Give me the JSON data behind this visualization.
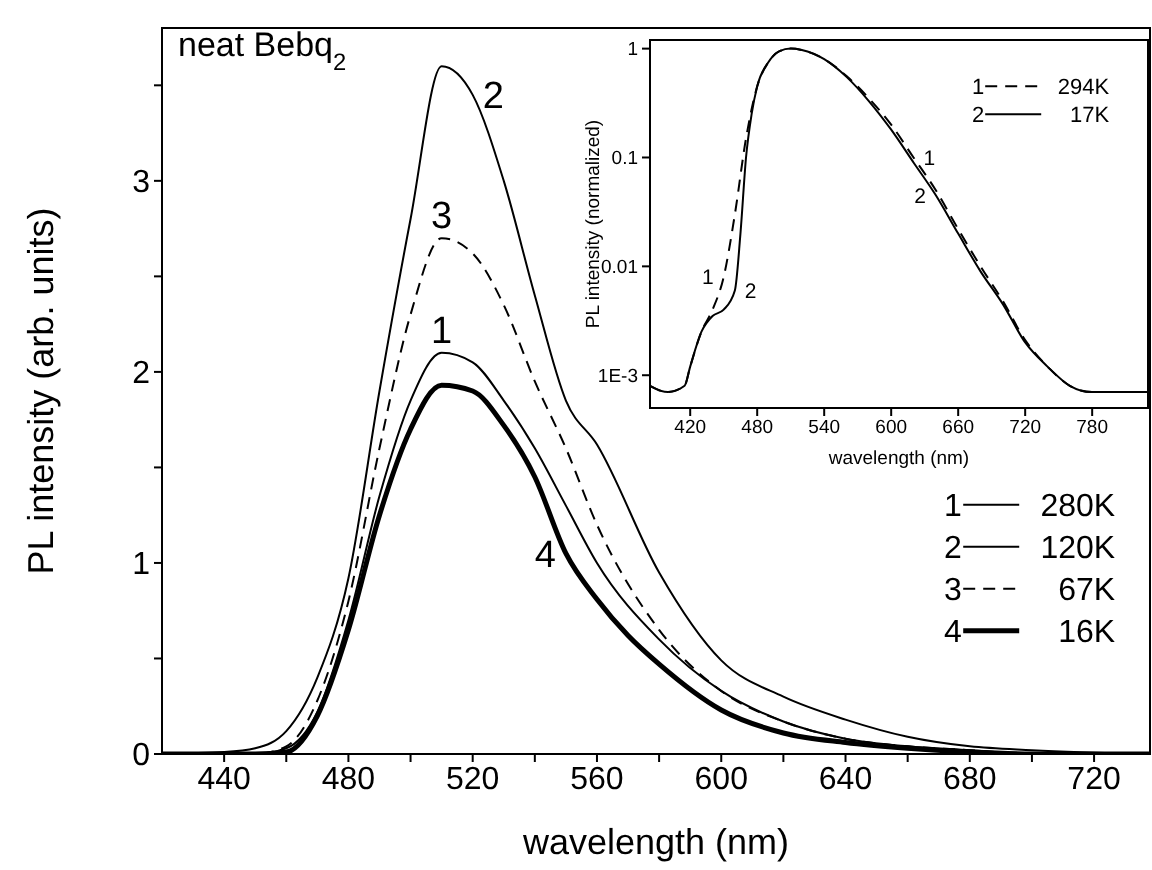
{
  "chart_data": [
    {
      "type": "line",
      "xlabel": "wavelength (nm)",
      "ylabel": "PL intensity (arb. units)",
      "xlim": [
        420,
        738
      ],
      "ylim": [
        0,
        3.8
      ],
      "xticks": [
        440,
        {
          "value": 460,
          "label": null
        },
        480,
        {
          "value": 500,
          "label": null
        },
        520,
        {
          "value": 540,
          "label": null
        },
        560,
        {
          "value": 580,
          "label": null
        },
        600,
        {
          "value": 620,
          "label": null
        },
        640,
        {
          "value": 660,
          "label": null
        },
        680,
        {
          "value": 700,
          "label": null
        },
        720
      ],
      "yticks": [
        0,
        {
          "value": 0.5,
          "label": null
        },
        1,
        {
          "value": 1.5,
          "label": null
        },
        2,
        {
          "value": 2.5,
          "label": null
        },
        3,
        {
          "value": 3.5,
          "label": null
        }
      ],
      "grid": false,
      "legend": "bottom right",
      "marker": "none",
      "annotations": [
        "neat Bebq$_{2}$",
        {
          "text": "2",
          "x": 520,
          "y": 3.45
        },
        {
          "text": "3",
          "x": 510,
          "y": 2.7
        },
        {
          "text": "1",
          "x": 510,
          "y": 2.1
        },
        {
          "text": "4",
          "x": 550,
          "y": 1.05
        }
      ],
      "series": [
        {
          "name": "280K",
          "color": "#000000",
          "line_style": "solid",
          "x": [
            420,
            440,
            450,
            460,
            470,
            480,
            490,
            500,
            510,
            520,
            530,
            540,
            550,
            560,
            580,
            600,
            620,
            640,
            660,
            680,
            700,
            738
          ],
          "values": [
            0,
            0,
            0,
            0.03,
            0.22,
            0.7,
            1.35,
            1.85,
            2.1,
            2.05,
            1.85,
            1.6,
            1.3,
            1.0,
            0.6,
            0.33,
            0.17,
            0.08,
            0.04,
            0.02,
            0,
            0
          ]
        },
        {
          "name": "120K",
          "color": "#000000",
          "line_style": "solid",
          "x": [
            420,
            440,
            450,
            460,
            470,
            480,
            490,
            500,
            510,
            520,
            530,
            540,
            550,
            560,
            580,
            600,
            620,
            640,
            660,
            680,
            700,
            738
          ],
          "values": [
            0,
            0.01,
            0.03,
            0.12,
            0.4,
            0.92,
            1.9,
            2.8,
            3.6,
            3.45,
            3.0,
            2.4,
            1.85,
            1.62,
            0.95,
            0.49,
            0.3,
            0.18,
            0.09,
            0.04,
            0.02,
            0
          ]
        },
        {
          "name": "67K",
          "color": "#000000",
          "line_style": "dashed",
          "x": [
            420,
            440,
            450,
            460,
            470,
            480,
            490,
            500,
            510,
            520,
            530,
            540,
            550,
            560,
            580,
            600,
            620,
            640,
            660,
            680,
            700,
            738
          ],
          "values": [
            0,
            0,
            0,
            0.04,
            0.28,
            0.8,
            1.6,
            2.3,
            2.7,
            2.62,
            2.35,
            1.95,
            1.6,
            1.2,
            0.65,
            0.33,
            0.17,
            0.08,
            0.04,
            0.02,
            0,
            0
          ]
        },
        {
          "name": "16K",
          "color": "#000000",
          "line_style": "solid",
          "x": [
            420,
            440,
            450,
            460,
            470,
            480,
            490,
            500,
            510,
            520,
            530,
            540,
            550,
            560,
            570,
            580,
            600,
            620,
            640,
            660,
            680,
            700,
            738
          ],
          "values": [
            0,
            0,
            0,
            0.01,
            0.2,
            0.65,
            1.25,
            1.7,
            1.93,
            1.9,
            1.72,
            1.45,
            1.05,
            0.81,
            0.62,
            0.47,
            0.23,
            0.11,
            0.06,
            0.03,
            0.01,
            0,
            0
          ]
        }
      ]
    },
    {
      "type": "line",
      "xlabel": "wavelength (nm)",
      "ylabel": "PL intensity (normalized)",
      "log": "y",
      "xlim": [
        384,
        830
      ],
      "ylim": [
        0.0005,
        1.2
      ],
      "xticks": [
        420,
        480,
        540,
        600,
        660,
        720,
        780
      ],
      "yticks": [
        {
          "value": 0.001,
          "label": "1E-3"
        },
        0.01,
        0.1,
        1
      ],
      "grid": false,
      "legend": "top right",
      "marker": "none",
      "annotations": [
        {
          "text": "1",
          "x": 450,
          "y": 0.008
        },
        {
          "text": "2",
          "x": 460,
          "y": 0.006
        },
        {
          "text": "1",
          "x": 620,
          "y": 0.1
        },
        {
          "text": "2",
          "x": 640,
          "y": 0.045
        }
      ],
      "series": [
        {
          "name": "294K",
          "color": "#000000",
          "line_style": "dashed",
          "x": [
            384,
            400,
            415,
            420,
            430,
            440,
            450,
            460,
            470,
            480,
            490,
            500,
            510,
            520,
            540,
            560,
            580,
            600,
            620,
            640,
            660,
            680,
            700,
            720,
            740,
            760,
            780,
            800,
            830
          ],
          "values": [
            0.0008,
            0.0007,
            0.0008,
            0.0012,
            0.0025,
            0.004,
            0.008,
            0.03,
            0.15,
            0.45,
            0.75,
            0.95,
            1,
            0.97,
            0.8,
            0.56,
            0.35,
            0.2,
            0.1,
            0.05,
            0.022,
            0.01,
            0.0048,
            0.0021,
            0.0012,
            0.0008,
            0.0007,
            0.0007,
            0.0007
          ]
        },
        {
          "name": "17K",
          "color": "#000000",
          "line_style": "solid",
          "x": [
            384,
            400,
            415,
            420,
            430,
            440,
            450,
            460,
            465,
            470,
            475,
            480,
            490,
            500,
            510,
            520,
            540,
            560,
            580,
            600,
            620,
            640,
            660,
            680,
            700,
            720,
            740,
            760,
            780,
            800,
            830
          ],
          "values": [
            0.0008,
            0.0007,
            0.0008,
            0.0012,
            0.0025,
            0.0035,
            0.004,
            0.006,
            0.02,
            0.1,
            0.25,
            0.45,
            0.75,
            0.95,
            1,
            0.97,
            0.8,
            0.55,
            0.33,
            0.18,
            0.09,
            0.045,
            0.02,
            0.009,
            0.0045,
            0.002,
            0.0012,
            0.0008,
            0.0007,
            0.0007,
            0.0007
          ]
        }
      ]
    }
  ]
}
